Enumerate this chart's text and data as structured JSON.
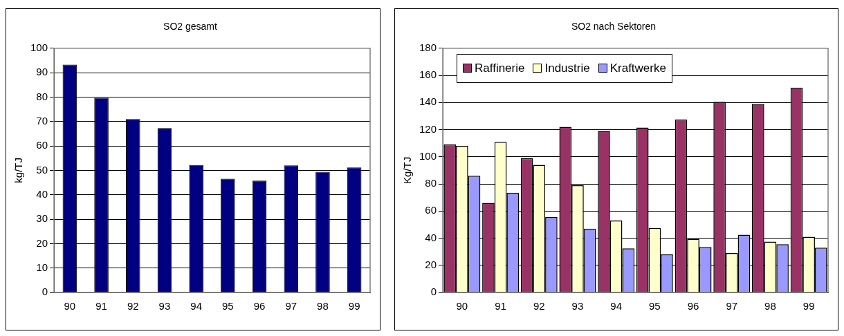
{
  "chart_data": [
    {
      "type": "bar",
      "title": "SO2 gesamt",
      "ylabel": "kg/TJ",
      "categories": [
        "90",
        "91",
        "92",
        "93",
        "94",
        "95",
        "96",
        "97",
        "98",
        "99"
      ],
      "series": [
        {
          "color": "#000080",
          "values": [
            93.3,
            79.7,
            71,
            67.3,
            52.2,
            46.6,
            45.8,
            52,
            49.4,
            51.2
          ]
        }
      ],
      "ylim": [
        0,
        100
      ],
      "yticks": [
        0,
        10,
        20,
        30,
        40,
        50,
        60,
        70,
        80,
        90,
        100
      ],
      "grid": "y",
      "legend": false
    },
    {
      "type": "bar",
      "title": "SO2 nach Sektoren",
      "ylabel": "Kg/TJ",
      "categories": [
        "90",
        "91",
        "92",
        "93",
        "94",
        "95",
        "96",
        "97",
        "98",
        "99"
      ],
      "series": [
        {
          "name": "Raffinerie",
          "color": "#993366",
          "values": [
            109,
            66,
            99,
            122,
            119,
            121.5,
            127.5,
            140.5,
            139,
            151
          ]
        },
        {
          "name": "Industrie",
          "color": "#ffffcc",
          "values": [
            108,
            111,
            94,
            79,
            53,
            47.5,
            39.5,
            29,
            37.5,
            41
          ]
        },
        {
          "name": "Kraftwerke",
          "color": "#9999ff",
          "values": [
            86,
            73.5,
            55.5,
            47,
            32.5,
            28,
            33.5,
            42.5,
            35.5,
            33
          ]
        }
      ],
      "ylim": [
        0,
        180
      ],
      "yticks": [
        0,
        20,
        40,
        60,
        80,
        100,
        120,
        140,
        160,
        180
      ],
      "grid": "y",
      "legend": "top left"
    }
  ]
}
